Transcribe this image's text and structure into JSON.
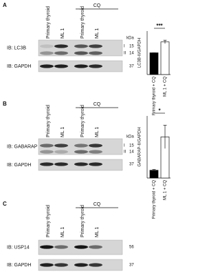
{
  "panels": [
    {
      "label": "A",
      "treatment": "CQ",
      "lanes": [
        "Primary thyroid",
        "ML 1",
        "Primary thyroid",
        "ML 1"
      ],
      "unit": "kDa",
      "blots": [
        {
          "antibody": "IB: LC3B",
          "markers": [
            "15",
            "14"
          ],
          "forms": [
            "I",
            "II"
          ]
        },
        {
          "antibody": "IB: GAPDH",
          "markers": [
            "37"
          ]
        }
      ]
    },
    {
      "label": "B",
      "treatment": "CQ",
      "lanes": [
        "Primary thyroid",
        "ML 1",
        "Primary thyroid",
        "ML 1"
      ],
      "unit": "kDa",
      "blots": [
        {
          "antibody": "IB: GABARAP",
          "markers": [
            "15",
            "14"
          ],
          "forms": [
            "I",
            "II"
          ]
        },
        {
          "antibody": "IB: GAPDH",
          "markers": [
            "37"
          ]
        }
      ]
    },
    {
      "label": "C",
      "treatment": "CQ",
      "lanes": [
        "Primary thyroid",
        "ML 1",
        "Primary thyroid",
        "ML 1"
      ],
      "blots": [
        {
          "antibody": "IB: USP14",
          "markers": [
            "56"
          ]
        },
        {
          "antibody": "IB: GAPDH",
          "markers": [
            "37"
          ]
        }
      ]
    }
  ],
  "chart_data": [
    {
      "type": "bar",
      "ylabel": "LC3B-II/GAPDH",
      "categories": [
        "Primary thyroid + CQ",
        "ML 1 + CQ"
      ],
      "values": [
        1,
        1.5
      ],
      "errors": [
        0,
        0.08
      ],
      "colors": [
        "#000000",
        "#ffffff"
      ],
      "ylim": [
        0,
        2
      ],
      "annotation": "***"
    },
    {
      "type": "bar",
      "ylabel": "GABARAP-II/GAPDH",
      "categories": [
        "Primary thyroid + CQ",
        "ML 1 + CQ"
      ],
      "values": [
        1,
        5.3
      ],
      "errors": [
        0.1,
        1.5
      ],
      "colors": [
        "#000000",
        "#ffffff"
      ],
      "ylim": [
        0,
        8
      ],
      "annotation": "*"
    }
  ]
}
